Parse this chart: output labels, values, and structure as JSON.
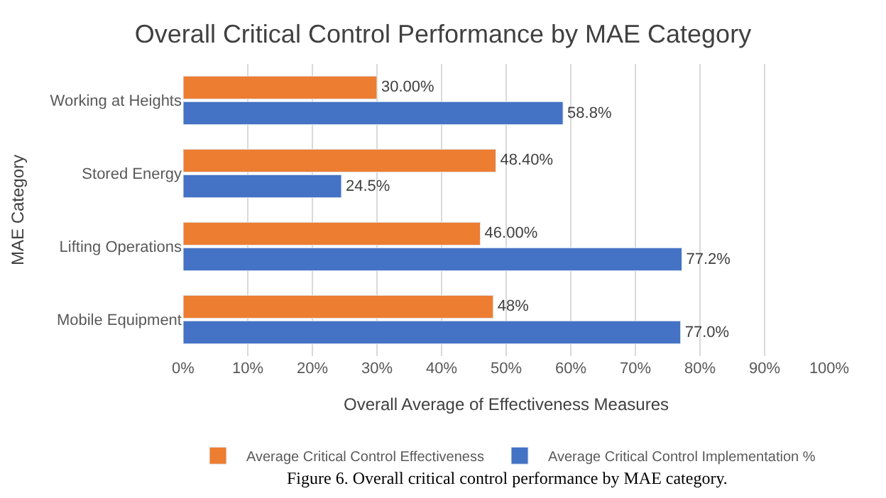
{
  "chart_data": {
    "type": "bar",
    "orientation": "horizontal",
    "title": "Overall Critical Control Performance by MAE Category",
    "xlabel": "Overall Average of Effectiveness Measures",
    "ylabel": "MAE Category",
    "categories": [
      "Working at Heights",
      "Stored Energy",
      "Lifting Operations",
      "Mobile Equipment"
    ],
    "series": [
      {
        "name": "Average Critical Control Effectiveness",
        "color": "#ed7d31",
        "values": [
          30,
          48.4,
          46,
          48
        ],
        "value_labels": [
          "30.00%",
          "48.40%",
          "46.00%",
          "48%"
        ]
      },
      {
        "name": "Average Critical Control Implementation %",
        "color": "#4472c4",
        "values": [
          58.8,
          24.5,
          77.2,
          77.0
        ],
        "value_labels": [
          "58.8%",
          "24.5%",
          "77.2%",
          "77.0%"
        ]
      }
    ],
    "xlim": [
      0,
      100
    ],
    "xticks": [
      {
        "value": 0,
        "label": "0%"
      },
      {
        "value": 10,
        "label": "10%"
      },
      {
        "value": 20,
        "label": "20%"
      },
      {
        "value": 30,
        "label": "30%"
      },
      {
        "value": 40,
        "label": "40%"
      },
      {
        "value": 50,
        "label": "50%"
      },
      {
        "value": 60,
        "label": "60%"
      },
      {
        "value": 70,
        "label": "70%"
      },
      {
        "value": 80,
        "label": "80%"
      },
      {
        "value": 90,
        "label": "90%"
      },
      {
        "value": 100,
        "label": "100%"
      }
    ],
    "grid": "x",
    "legend": "bottom",
    "annotations": [
      "Figure 6. Overall critical control performance by MAE category."
    ]
  }
}
